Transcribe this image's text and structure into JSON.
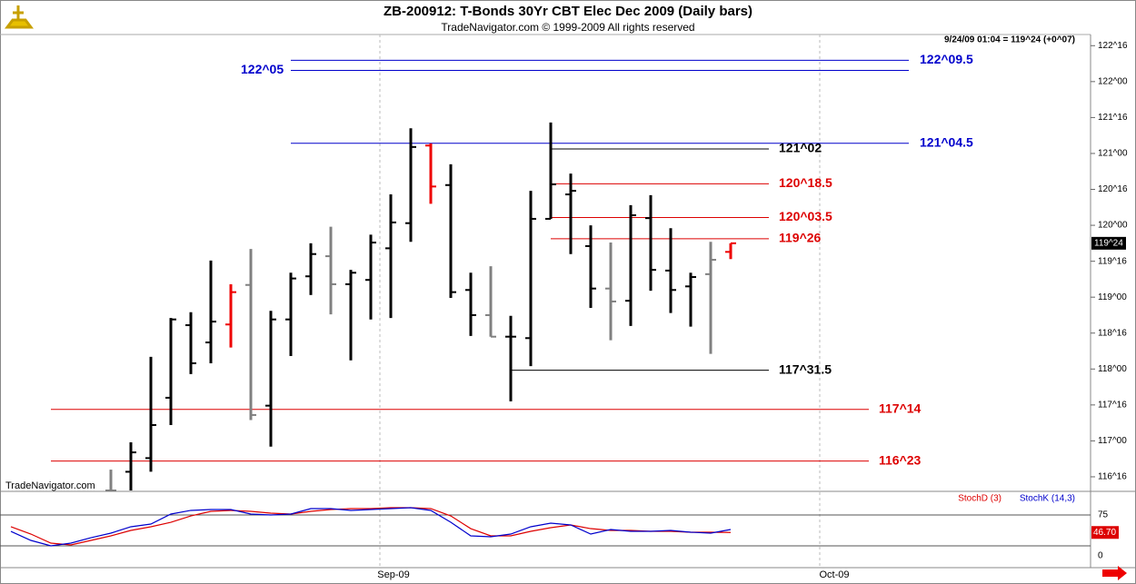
{
  "chart_data": {
    "type": "ohlc",
    "title": "ZB-200912:  T-Bonds 30Yr CBT Elec Dec 2009  (Daily bars)",
    "subtitle": "TradeNavigator.com © 1999-2009 All rights reserved",
    "info": "9/24/09 01:04 = 119^24 (+0^07)",
    "watermark": "TradeNavigator.com",
    "x_labels": [
      "Sep-09",
      "Oct-09"
    ],
    "ylim": [
      116.31,
      122.63
    ],
    "yticks": [
      {
        "value": 122.5,
        "label": "122^16"
      },
      {
        "value": 122,
        "label": "122^00"
      },
      {
        "value": 121.5,
        "label": "121^16"
      },
      {
        "value": 121,
        "label": "121^00"
      },
      {
        "value": 120.5,
        "label": "120^16"
      },
      {
        "value": 120,
        "label": "120^00"
      },
      {
        "value": 119.5,
        "label": "119^16"
      },
      {
        "value": 119,
        "label": "119^00"
      },
      {
        "value": 118.5,
        "label": "118^16"
      },
      {
        "value": 118,
        "label": "118^00"
      },
      {
        "value": 117.5,
        "label": "117^16"
      },
      {
        "value": 117,
        "label": "117^00"
      },
      {
        "value": 116.5,
        "label": "116^16"
      }
    ],
    "open": [
      null,
      null,
      null,
      null,
      null,
      116.31,
      116.57,
      116.76,
      117.6,
      118.61,
      118.37,
      118.62,
      119.17,
      117.49,
      118.69,
      119.29,
      119.57,
      119.18,
      119.24,
      119.68,
      120.03,
      121.11,
      120.56,
      119.1,
      118.75,
      118.45,
      118.43,
      120.09,
      120.43,
      119.71,
      119.12,
      118.95,
      120.1,
      119.37,
      119.15,
      119.32,
      119.63
    ],
    "high": [
      null,
      null,
      null,
      null,
      null,
      116.6,
      116.98,
      118.17,
      118.71,
      118.79,
      119.51,
      119.18,
      119.67,
      118.81,
      119.34,
      119.75,
      119.98,
      119.38,
      119.87,
      120.43,
      121.35,
      121.14,
      120.85,
      119.34,
      119.43,
      118.74,
      120.48,
      121.43,
      120.72,
      120.0,
      119.76,
      120.28,
      120.42,
      119.96,
      119.34,
      119.77,
      119.75
    ],
    "low": [
      null,
      null,
      null,
      null,
      null,
      116.31,
      116.31,
      116.57,
      117.22,
      117.93,
      118.08,
      118.3,
      117.29,
      116.92,
      118.18,
      119.03,
      118.76,
      118.12,
      118.69,
      118.71,
      119.77,
      120.3,
      118.99,
      118.46,
      118.45,
      117.55,
      118.04,
      120.09,
      119.6,
      118.85,
      118.4,
      118.6,
      119.09,
      118.78,
      118.59,
      118.21,
      119.53
    ],
    "close": [
      null,
      null,
      null,
      null,
      null,
      116.31,
      116.84,
      117.22,
      118.69,
      118.08,
      118.66,
      119.07,
      117.36,
      118.69,
      119.26,
      119.6,
      119.18,
      119.34,
      119.76,
      120.04,
      121.09,
      120.54,
      119.07,
      118.75,
      118.45,
      118.45,
      120.09,
      120.57,
      120.48,
      119.12,
      118.94,
      120.14,
      119.38,
      119.1,
      119.28,
      119.52,
      119.75
    ],
    "bar_colors": [
      null,
      null,
      null,
      null,
      null,
      "#808080",
      "#000000",
      "#000000",
      "#000000",
      "#000000",
      "#000000",
      "#ee0000",
      "#808080",
      "#000000",
      "#000000",
      "#000000",
      "#808080",
      "#000000",
      "#000000",
      "#000000",
      "#000000",
      "#ee0000",
      "#000000",
      "#000000",
      "#808080",
      "#000000",
      "#000000",
      "#000000",
      "#000000",
      "#000000",
      "#808080",
      "#000000",
      "#000000",
      "#000000",
      "#000000",
      "#808080",
      "#ee0000"
    ],
    "price_box": {
      "value": 119.75,
      "label": "119^24"
    },
    "levels": [
      {
        "label": "122^09.5",
        "value": 122.297,
        "color": "#0000cc"
      },
      {
        "label": "122^05",
        "value": 122.156,
        "color": "#0000cc"
      },
      {
        "label": "121^04.5",
        "value": 121.141,
        "color": "#0000cc"
      },
      {
        "label": "121^02",
        "value": 121.0625,
        "color": "#000000"
      },
      {
        "label": "120^18.5",
        "value": 120.578,
        "color": "#dd0000"
      },
      {
        "label": "120^03.5",
        "value": 120.109,
        "color": "#dd0000"
      },
      {
        "label": "119^26",
        "value": 119.8125,
        "color": "#dd0000"
      },
      {
        "label": "117^31.5",
        "value": 117.984,
        "color": "#000000"
      },
      {
        "label": "117^14",
        "value": 117.4375,
        "color": "#dd0000"
      },
      {
        "label": "116^23",
        "value": 116.719,
        "color": "#dd0000"
      }
    ],
    "stoch": {
      "ylim": [
        0,
        100
      ],
      "yticks": [
        0,
        75
      ],
      "hlines": [
        75,
        25
      ],
      "last_value_label": "46.70",
      "series": [
        {
          "name": "StochD (3)",
          "color": "#dd0000",
          "values": [
            55.9,
            44.1,
            29.4,
            26.5,
            33.8,
            41.2,
            50,
            55.9,
            63.2,
            73.5,
            80.9,
            82.4,
            80.9,
            77.9,
            76.5,
            80.9,
            83.8,
            85.3,
            85.3,
            86.8,
            86.8,
            85.3,
            73.5,
            52.9,
            41.2,
            41.2,
            48.5,
            54.4,
            58.8,
            52.9,
            50,
            50,
            48.5,
            48.5,
            47.1,
            47.1,
            46.7
          ]
        },
        {
          "name": "StochK (14,3)",
          "color": "#0000cc",
          "values": [
            48.5,
            33.8,
            25,
            29.4,
            38.2,
            45.6,
            55.9,
            60.3,
            76.5,
            82.4,
            83.8,
            83.8,
            76.5,
            75,
            76.5,
            85.3,
            85.3,
            82.4,
            83.8,
            85.3,
            86.8,
            82.4,
            63.2,
            41.2,
            39.7,
            44.1,
            55.9,
            61.8,
            58.8,
            44.1,
            51.5,
            48.5,
            48.5,
            50,
            47.1,
            45.6,
            51.5
          ]
        }
      ]
    }
  }
}
